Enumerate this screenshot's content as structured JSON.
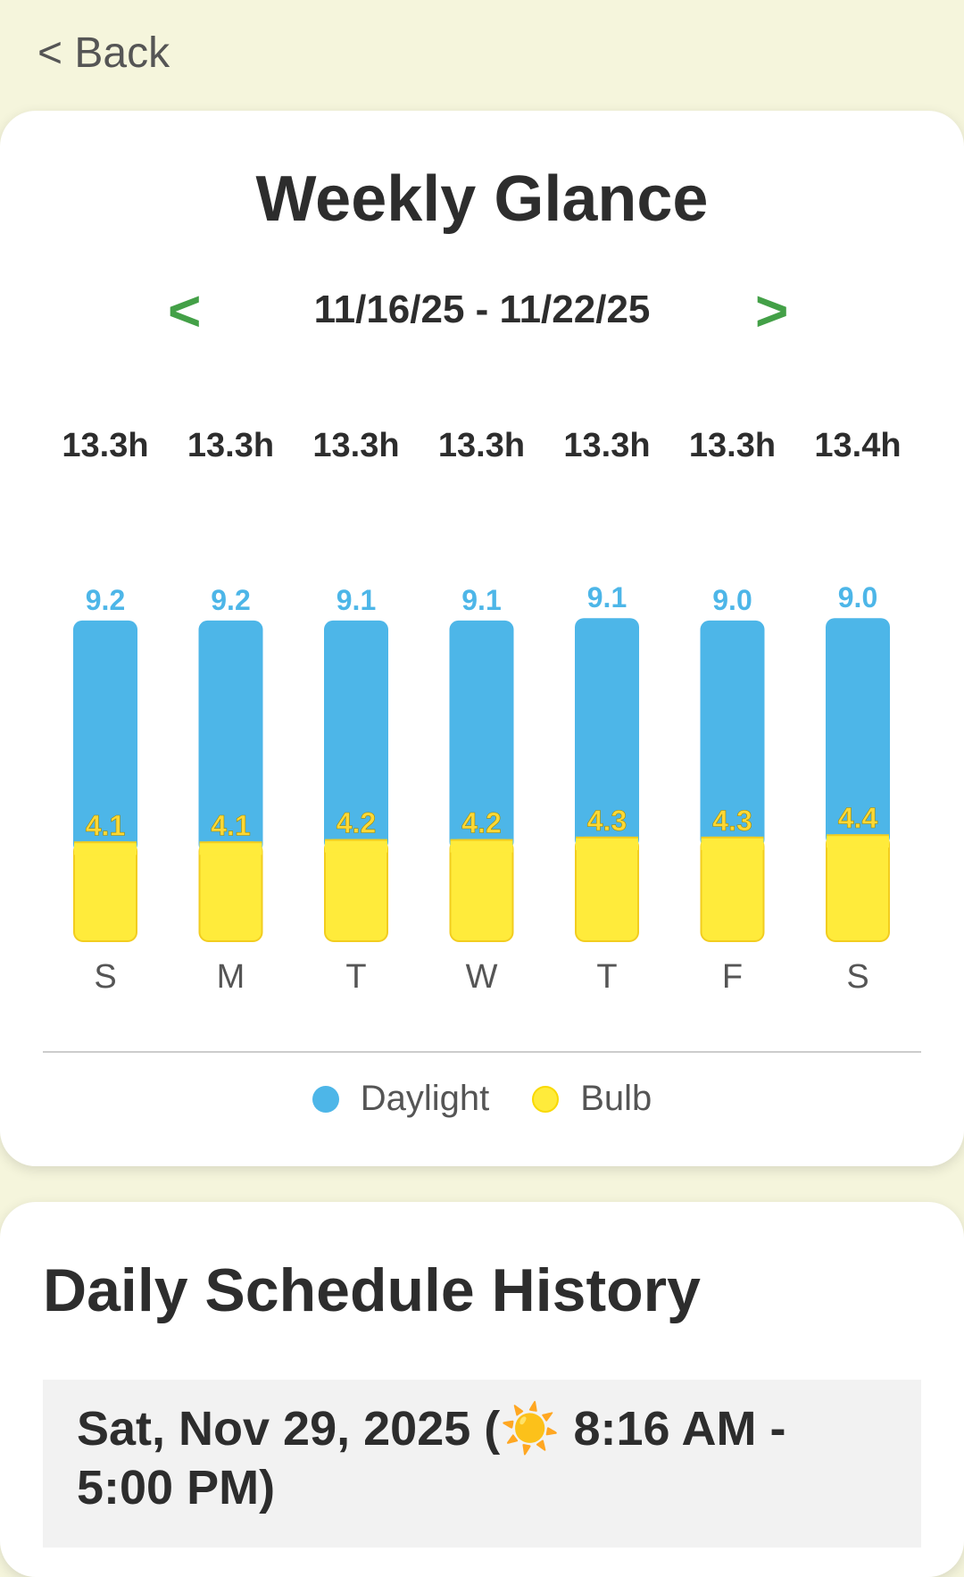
{
  "nav": {
    "back_label": "< Back"
  },
  "weekly": {
    "title": "Weekly Glance",
    "prev_label": "<",
    "next_label": ">",
    "date_range": "11/16/25 - 11/22/25"
  },
  "chart_data": {
    "type": "bar",
    "stacked": true,
    "categories": [
      "S",
      "M",
      "T",
      "W",
      "T",
      "F",
      "S"
    ],
    "totals": [
      "13.3h",
      "13.3h",
      "13.3h",
      "13.3h",
      "13.3h",
      "13.3h",
      "13.4h"
    ],
    "series": [
      {
        "name": "Daylight",
        "color": "#4db6e8",
        "values": [
          9.2,
          9.2,
          9.1,
          9.1,
          9.1,
          9.0,
          9.0
        ]
      },
      {
        "name": "Bulb",
        "color": "#ffeb3b",
        "values": [
          4.1,
          4.1,
          4.2,
          4.2,
          4.3,
          4.3,
          4.4
        ]
      }
    ],
    "legend": "bottom"
  },
  "legend": {
    "daylight": "Daylight",
    "bulb": "Bulb"
  },
  "history": {
    "title": "Daily Schedule History",
    "entries": [
      {
        "text": "Sat, Nov 29, 2025 (☀️ 8:16 AM - 5:00 PM)"
      }
    ]
  }
}
